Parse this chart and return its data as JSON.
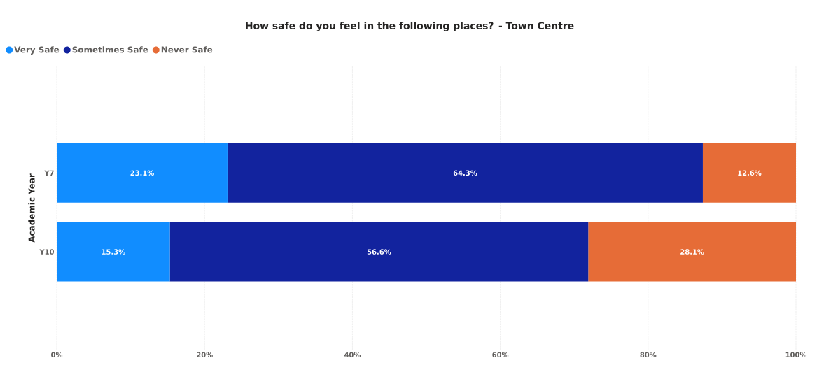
{
  "chart_data": {
    "type": "bar",
    "orientation": "horizontal",
    "stacked": true,
    "title": "How safe do you feel in the following places? - Town Centre",
    "ylabel": "Academic Year",
    "categories": [
      "Y7",
      "Y10"
    ],
    "series": [
      {
        "name": "Very Safe",
        "color": "#118dff",
        "values": [
          23.1,
          15.3
        ],
        "value_labels": [
          "23.1%",
          "15.3%"
        ]
      },
      {
        "name": "Sometimes Safe",
        "color": "#12239e",
        "values": [
          64.3,
          56.6
        ],
        "value_labels": [
          "64.3%",
          "56.6%"
        ]
      },
      {
        "name": "Never Safe",
        "color": "#e66c37",
        "values": [
          12.6,
          28.1
        ],
        "value_labels": [
          "12.6%",
          "28.1%"
        ]
      }
    ],
    "xlim": [
      0,
      100
    ],
    "xticks": [
      {
        "value": 0,
        "label": "0%"
      },
      {
        "value": 20,
        "label": "20%"
      },
      {
        "value": 40,
        "label": "40%"
      },
      {
        "value": 60,
        "label": "60%"
      },
      {
        "value": 80,
        "label": "80%"
      },
      {
        "value": 100,
        "label": "100%"
      }
    ],
    "grid": "x",
    "legend": "top left"
  }
}
